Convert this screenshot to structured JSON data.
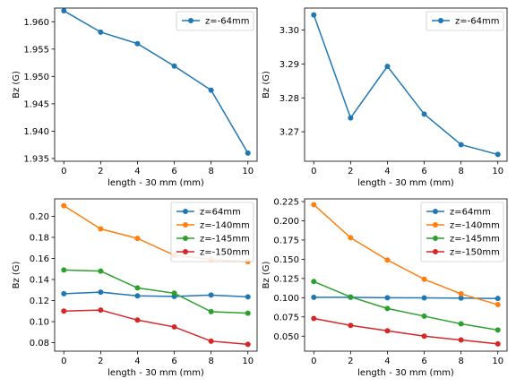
{
  "chart_data": [
    {
      "type": "line",
      "xlabel": "length - 30 mm (mm)",
      "ylabel": "Bz (G)",
      "xlim": [
        -0.5,
        10.5
      ],
      "ylim": [
        1.9345,
        1.9625
      ],
      "xticks": [
        0,
        2,
        4,
        6,
        8,
        10
      ],
      "xtick_labels": [
        "0",
        "2",
        "4",
        "6",
        "8",
        "10"
      ],
      "yticks": [
        1.935,
        1.94,
        1.945,
        1.95,
        1.955,
        1.96
      ],
      "ytick_labels": [
        "1.935",
        "1.940",
        "1.945",
        "1.950",
        "1.955",
        "1.960"
      ],
      "legend_position": "top-right",
      "grid": false,
      "x": [
        0,
        2,
        4,
        6,
        8,
        10
      ],
      "series": [
        {
          "name": "z=-64mm",
          "color": "#1f77b4",
          "values": [
            1.962,
            1.9581,
            1.956,
            1.9519,
            1.9475,
            1.936
          ]
        }
      ]
    },
    {
      "type": "line",
      "xlabel": "length - 30 mm (mm)",
      "ylabel": "Bz (G)",
      "xlim": [
        -0.5,
        10.5
      ],
      "ylim": [
        3.2613,
        3.3065
      ],
      "xticks": [
        0,
        2,
        4,
        6,
        8,
        10
      ],
      "xtick_labels": [
        "0",
        "2",
        "4",
        "6",
        "8",
        "10"
      ],
      "yticks": [
        3.27,
        3.28,
        3.29,
        3.3
      ],
      "ytick_labels": [
        "3.27",
        "3.28",
        "3.29",
        "3.30"
      ],
      "legend_position": "top-right",
      "grid": false,
      "x": [
        0,
        2,
        4,
        6,
        8,
        10
      ],
      "series": [
        {
          "name": "z=-64mm",
          "color": "#1f77b4",
          "values": [
            3.3045,
            3.2741,
            3.2893,
            3.2752,
            3.2662,
            3.2633
          ]
        }
      ]
    },
    {
      "type": "line",
      "xlabel": "length - 30 mm (mm)",
      "ylabel": "Bz (G)",
      "xlim": [
        -0.5,
        10.5
      ],
      "ylim": [
        0.072,
        0.2165
      ],
      "xticks": [
        0,
        2,
        4,
        6,
        8,
        10
      ],
      "xtick_labels": [
        "0",
        "2",
        "4",
        "6",
        "8",
        "10"
      ],
      "yticks": [
        0.08,
        0.1,
        0.12,
        0.14,
        0.16,
        0.18,
        0.2
      ],
      "ytick_labels": [
        "0.08",
        "0.10",
        "0.12",
        "0.14",
        "0.16",
        "0.18",
        "0.20"
      ],
      "legend_position": "top-right",
      "grid": false,
      "x": [
        0,
        2,
        4,
        6,
        8,
        10
      ],
      "series": [
        {
          "name": "z=64mm",
          "color": "#1f77b4",
          "values": [
            0.1265,
            0.128,
            0.1245,
            0.124,
            0.1252,
            0.1235
          ]
        },
        {
          "name": "z=-140mm",
          "color": "#ff7f0e",
          "values": [
            0.21,
            0.188,
            0.179,
            0.163,
            0.159,
            0.157
          ]
        },
        {
          "name": "z=-145mm",
          "color": "#2ca02c",
          "values": [
            0.149,
            0.148,
            0.132,
            0.127,
            0.1095,
            0.108
          ]
        },
        {
          "name": "z=-150mm",
          "color": "#d62728",
          "values": [
            0.11,
            0.111,
            0.1015,
            0.095,
            0.0815,
            0.0785
          ]
        }
      ]
    },
    {
      "type": "line",
      "xlabel": "length - 30 mm (mm)",
      "ylabel": "Bz (G)",
      "xlim": [
        -0.5,
        10.5
      ],
      "ylim": [
        0.0305,
        0.2285
      ],
      "xticks": [
        0,
        2,
        4,
        6,
        8,
        10
      ],
      "xtick_labels": [
        "0",
        "2",
        "4",
        "6",
        "8",
        "10"
      ],
      "yticks": [
        0.05,
        0.075,
        0.1,
        0.125,
        0.15,
        0.175,
        0.2,
        0.225
      ],
      "ytick_labels": [
        "0.050",
        "0.075",
        "0.100",
        "0.125",
        "0.150",
        "0.175",
        "0.200",
        "0.225"
      ],
      "legend_position": "top-right",
      "grid": false,
      "x": [
        0,
        2,
        4,
        6,
        8,
        10
      ],
      "series": [
        {
          "name": "z=64mm",
          "color": "#1f77b4",
          "values": [
            0.1005,
            0.1005,
            0.1,
            0.0998,
            0.0995,
            0.099
          ]
        },
        {
          "name": "z=-140mm",
          "color": "#ff7f0e",
          "values": [
            0.221,
            0.178,
            0.149,
            0.124,
            0.105,
            0.091
          ]
        },
        {
          "name": "z=-145mm",
          "color": "#2ca02c",
          "values": [
            0.121,
            0.101,
            0.086,
            0.076,
            0.066,
            0.058
          ]
        },
        {
          "name": "z=-150mm",
          "color": "#d62728",
          "values": [
            0.073,
            0.064,
            0.057,
            0.05,
            0.045,
            0.04
          ]
        }
      ]
    }
  ]
}
